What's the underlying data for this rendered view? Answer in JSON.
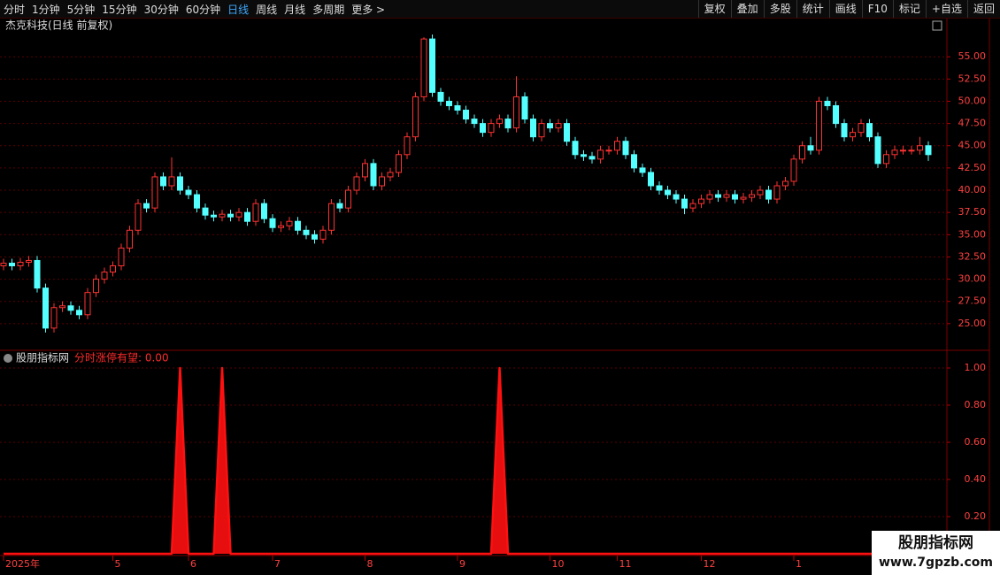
{
  "toolbar": {
    "left": [
      "分时",
      "1分钟",
      "5分钟",
      "15分钟",
      "30分钟",
      "60分钟",
      "日线",
      "周线",
      "月线",
      "多周期",
      "更多 >"
    ],
    "active_index": 6,
    "right": [
      "复权",
      "叠加",
      "多股",
      "统计",
      "画线",
      "F10",
      "标记",
      "+自选",
      "返回"
    ]
  },
  "watermark": {
    "title": "股朋指标网",
    "url": "www.7gpzb.com"
  },
  "chart_data": [
    {
      "type": "candlestick",
      "title": "杰克科技(日线 前复权)",
      "up_color": "#ff3232",
      "down_color": "#54ffff",
      "grid": true,
      "ylim": [
        22.4,
        58.4
      ],
      "yticks": [
        {
          "value": 25,
          "label": "25.00"
        },
        {
          "value": 27.5,
          "label": "27.50"
        },
        {
          "value": 30,
          "label": "30.00"
        },
        {
          "value": 32.5,
          "label": "32.50"
        },
        {
          "value": 35,
          "label": "35.00"
        },
        {
          "value": 37.5,
          "label": "37.50"
        },
        {
          "value": 40,
          "label": "40.00"
        },
        {
          "value": 42.5,
          "label": "42.50"
        },
        {
          "value": 45,
          "label": "45.00"
        },
        {
          "value": 47.5,
          "label": "47.50"
        },
        {
          "value": 50,
          "label": "50.00"
        },
        {
          "value": 52.5,
          "label": "52.50"
        },
        {
          "value": 55,
          "label": "55.00"
        }
      ],
      "categories": [
        "2025年",
        null,
        null,
        null,
        null,
        null,
        null,
        null,
        null,
        null,
        null,
        null,
        null,
        "5",
        null,
        null,
        null,
        null,
        null,
        null,
        null,
        null,
        "6",
        null,
        null,
        null,
        null,
        null,
        null,
        null,
        null,
        null,
        "7",
        null,
        null,
        null,
        null,
        null,
        null,
        null,
        null,
        null,
        null,
        "8",
        null,
        null,
        null,
        null,
        null,
        null,
        null,
        null,
        null,
        null,
        "9",
        null,
        null,
        null,
        null,
        null,
        null,
        null,
        null,
        null,
        null,
        "10",
        null,
        null,
        null,
        null,
        null,
        null,
        null,
        "11",
        null,
        null,
        null,
        null,
        null,
        null,
        null,
        null,
        null,
        "12",
        null,
        null,
        null,
        null,
        null,
        null,
        null,
        null,
        null,
        null,
        "1",
        null,
        null,
        null,
        null,
        null,
        null,
        null,
        null,
        null,
        null,
        null,
        null,
        null,
        null,
        null,
        null
      ],
      "open": [
        31.5,
        31.8,
        31.5,
        31.9,
        32.1,
        29.0,
        24.5,
        26.8,
        27.0,
        26.5,
        26.0,
        28.5,
        30.0,
        30.8,
        31.5,
        33.5,
        35.5,
        38.5,
        38.0,
        41.5,
        40.5,
        41.5,
        40.0,
        39.5,
        38.0,
        37.2,
        37.0,
        37.3,
        37.0,
        37.5,
        36.5,
        38.5,
        36.8,
        35.8,
        36.0,
        36.5,
        35.5,
        35.0,
        34.5,
        35.5,
        38.5,
        38.0,
        40.0,
        41.5,
        43.0,
        40.5,
        41.5,
        42.0,
        44.0,
        46.0,
        50.5,
        57.0,
        51.0,
        50.0,
        49.5,
        49.0,
        48.0,
        47.5,
        46.5,
        47.5,
        48.0,
        47.0,
        50.5,
        48.0,
        46.0,
        47.5,
        47.0,
        47.5,
        45.5,
        44.0,
        43.8,
        43.5,
        44.5,
        44.5,
        45.5,
        44.0,
        42.5,
        42.0,
        40.5,
        40.0,
        39.5,
        39.0,
        38.0,
        38.5,
        39.0,
        39.5,
        39.2,
        39.5,
        39.0,
        39.2,
        39.5,
        40.0,
        39.0,
        40.5,
        41.0,
        43.5,
        45.0,
        44.5,
        50.0,
        49.5,
        47.5,
        46.0,
        46.5,
        47.5,
        46.0,
        43.0,
        44.0,
        44.5,
        44.5,
        44.5,
        45.0
      ],
      "high": [
        32.3,
        32.3,
        32.4,
        32.6,
        32.6,
        29.5,
        27.3,
        27.5,
        27.5,
        27.0,
        29.0,
        30.5,
        31.3,
        32.0,
        34.0,
        36.0,
        39.0,
        39.0,
        42.0,
        42.0,
        43.7,
        42.0,
        40.5,
        40.0,
        38.5,
        37.7,
        37.8,
        37.8,
        38.0,
        38.0,
        39.0,
        39.0,
        37.3,
        36.5,
        37.0,
        37.0,
        36.0,
        35.5,
        36.0,
        39.0,
        39.0,
        40.5,
        42.0,
        43.5,
        43.5,
        42.0,
        42.5,
        44.5,
        46.5,
        51.0,
        57.2,
        57.5,
        51.5,
        50.5,
        50.0,
        49.5,
        48.5,
        48.0,
        48.0,
        48.5,
        48.5,
        52.8,
        51.0,
        48.5,
        48.0,
        48.0,
        48.0,
        48.0,
        46.0,
        44.5,
        44.3,
        45.0,
        45.0,
        46.0,
        46.0,
        44.5,
        43.0,
        42.5,
        41.0,
        40.5,
        40.0,
        39.5,
        39.0,
        39.5,
        40.0,
        40.0,
        40.0,
        40.0,
        39.7,
        40.0,
        40.5,
        40.5,
        41.0,
        41.5,
        44.0,
        45.5,
        46.0,
        50.5,
        50.5,
        50.0,
        48.0,
        47.0,
        48.0,
        48.0,
        46.5,
        44.5,
        45.0,
        45.0,
        45.0,
        46.0,
        45.5
      ],
      "low": [
        31.0,
        31.0,
        31.0,
        31.4,
        28.5,
        24.0,
        24.0,
        26.3,
        26.0,
        25.5,
        25.5,
        28.0,
        29.5,
        30.3,
        31.0,
        33.0,
        35.0,
        37.5,
        37.5,
        40.0,
        40.0,
        39.5,
        39.0,
        37.5,
        36.7,
        36.5,
        36.5,
        36.5,
        36.5,
        36.0,
        36.0,
        36.3,
        35.3,
        35.3,
        35.5,
        35.0,
        34.5,
        34.0,
        34.0,
        35.0,
        37.5,
        37.5,
        39.5,
        41.0,
        40.0,
        40.0,
        41.0,
        41.5,
        43.5,
        45.5,
        50.0,
        50.5,
        49.5,
        49.0,
        48.5,
        47.5,
        47.0,
        46.0,
        46.0,
        47.0,
        46.5,
        46.5,
        47.5,
        45.5,
        45.5,
        46.5,
        46.5,
        45.0,
        43.5,
        43.3,
        43.0,
        43.0,
        44.0,
        44.0,
        43.5,
        42.0,
        41.5,
        40.0,
        39.5,
        39.0,
        38.5,
        37.3,
        37.5,
        38.0,
        38.5,
        38.7,
        38.7,
        38.5,
        38.5,
        38.7,
        39.0,
        38.5,
        38.5,
        40.0,
        40.5,
        43.0,
        44.0,
        44.0,
        49.0,
        47.0,
        45.5,
        45.5,
        46.0,
        45.5,
        42.5,
        42.5,
        43.5,
        44.0,
        44.0,
        44.0,
        43.3
      ],
      "close": [
        31.8,
        31.5,
        31.9,
        32.1,
        29.0,
        24.5,
        26.8,
        27.0,
        26.5,
        26.0,
        28.5,
        30.0,
        30.8,
        31.5,
        33.5,
        35.5,
        38.5,
        38.0,
        41.5,
        40.5,
        41.5,
        40.0,
        39.5,
        38.0,
        37.2,
        37.0,
        37.3,
        37.0,
        37.5,
        36.5,
        38.5,
        36.8,
        35.8,
        36.0,
        36.5,
        35.5,
        35.0,
        34.5,
        35.5,
        38.5,
        38.0,
        40.0,
        41.5,
        43.0,
        40.5,
        41.5,
        42.0,
        44.0,
        46.0,
        50.5,
        57.0,
        51.0,
        50.0,
        49.5,
        49.0,
        48.0,
        47.5,
        46.5,
        47.5,
        48.0,
        47.0,
        50.5,
        48.0,
        46.0,
        47.5,
        47.0,
        47.5,
        45.5,
        44.0,
        43.8,
        43.5,
        44.5,
        44.5,
        45.5,
        44.0,
        42.5,
        42.0,
        40.5,
        40.0,
        39.5,
        39.0,
        38.0,
        38.5,
        39.0,
        39.5,
        39.2,
        39.5,
        39.0,
        39.2,
        39.5,
        40.0,
        39.0,
        40.5,
        41.0,
        43.5,
        45.0,
        44.5,
        50.0,
        49.5,
        47.5,
        46.0,
        46.5,
        47.5,
        46.0,
        43.0,
        44.0,
        44.5,
        44.5,
        44.5,
        45.0,
        44.0
      ]
    },
    {
      "type": "line",
      "title": "股朋指标网",
      "readout": "分时涨停有望: 0.00",
      "grid": true,
      "ylim": [
        0,
        1.05
      ],
      "yticks": [
        {
          "value": 0.2,
          "label": "0.20"
        },
        {
          "value": 0.4,
          "label": "0.40"
        },
        {
          "value": 0.6,
          "label": "0.60"
        },
        {
          "value": 0.8,
          "label": "0.80"
        },
        {
          "value": 1.0,
          "label": "1.00"
        }
      ],
      "series": [
        {
          "color": "#ff1010",
          "values": [
            0,
            0,
            0,
            0,
            0,
            0,
            0,
            0,
            0,
            0,
            0,
            0,
            0,
            0,
            0,
            0,
            0,
            0,
            0,
            0,
            0,
            1,
            0,
            0,
            0,
            0,
            1,
            0,
            0,
            0,
            0,
            0,
            0,
            0,
            0,
            0,
            0,
            0,
            0,
            0,
            0,
            0,
            0,
            0,
            0,
            0,
            0,
            0,
            0,
            0,
            0,
            0,
            0,
            0,
            0,
            0,
            0,
            0,
            0,
            1,
            0,
            0,
            0,
            0,
            0,
            0,
            0,
            0,
            0,
            0,
            0,
            0,
            0,
            0,
            0,
            0,
            0,
            0,
            0,
            0,
            0,
            0,
            0,
            0,
            0,
            0,
            0,
            0,
            0,
            0,
            0,
            0,
            0,
            0,
            0,
            0,
            0,
            0,
            0,
            0,
            0,
            0,
            0,
            0,
            0,
            0,
            0,
            0,
            0,
            0,
            0
          ]
        }
      ]
    }
  ]
}
